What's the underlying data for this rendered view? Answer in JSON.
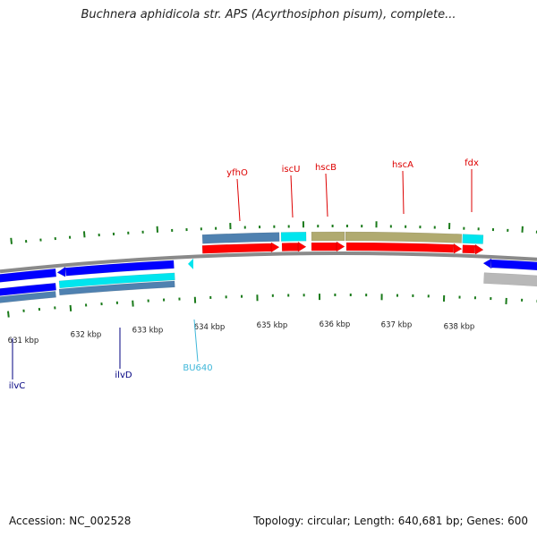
{
  "header": {
    "title": "Buchnera aphidicola str. APS (Acyrthosiphon pisum), complete..."
  },
  "footer": {
    "accession": "Accession: NC_002528",
    "stats": "Topology: circular; Length: 640,681 bp; Genes: 600"
  },
  "colors": {
    "cds_red": "#ff0000",
    "rna_cyan": "#00e5ee",
    "cog_blue": "#0000ff",
    "steel_blue": "#4f81b0",
    "olive": "#b0aa70",
    "grey": "#b8b8b8",
    "label_red": "#dd0000",
    "label_navy": "#000080",
    "label_cyan": "#3fb7d9",
    "tick_green": "#1a7a1a"
  },
  "scale": {
    "unit": "kbp",
    "labels": [
      "631 kbp",
      "632 kbp",
      "633 kbp",
      "634 kbp",
      "635 kbp",
      "636 kbp",
      "637 kbp",
      "638 kbp"
    ]
  },
  "gene_labels": [
    {
      "id": "yfhO",
      "text": "yfhO",
      "color": "label_red"
    },
    {
      "id": "iscU",
      "text": "iscU",
      "color": "label_red"
    },
    {
      "id": "hscB",
      "text": "hscB",
      "color": "label_red"
    },
    {
      "id": "hscA",
      "text": "hscA",
      "color": "label_red"
    },
    {
      "id": "fdx",
      "text": "fdx",
      "color": "label_red"
    },
    {
      "id": "ilvC",
      "text": "ilvC",
      "color": "label_navy"
    },
    {
      "id": "ilvD",
      "text": "ilvD",
      "color": "label_navy"
    },
    {
      "id": "BU640",
      "text": "BU640",
      "color": "label_cyan"
    }
  ]
}
